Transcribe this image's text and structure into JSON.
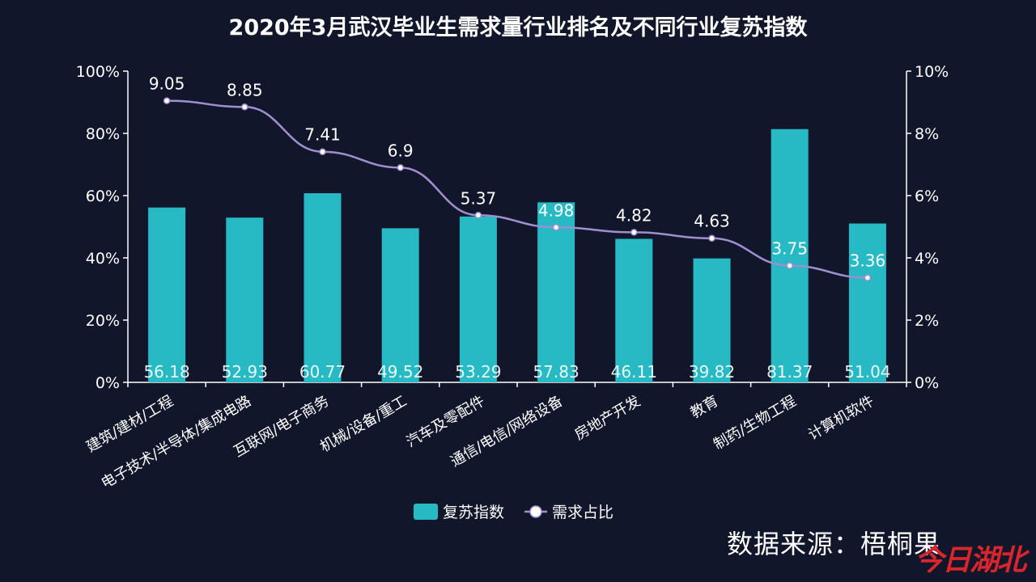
{
  "chart_data": {
    "type": "bar",
    "title": "2020年3月武汉毕业生需求量行业排名及不同行业复苏指数",
    "categories": [
      "建筑/建材/工程",
      "电子技术/半导体/集成电路",
      "互联网/电子商务",
      "机械/设备/重工",
      "汽车及零配件",
      "通信/电信/网络设备",
      "房地产开发",
      "教育",
      "制药/生物工程",
      "计算机软件"
    ],
    "series": [
      {
        "name": "复苏指数",
        "type": "bar",
        "axis": "left",
        "color": "#27b9c4",
        "values": [
          56.18,
          52.93,
          60.77,
          49.52,
          53.29,
          57.83,
          46.11,
          39.82,
          81.37,
          51.04
        ]
      },
      {
        "name": "需求占比",
        "type": "line",
        "axis": "right",
        "color": "#a08fd0",
        "values": [
          9.05,
          8.85,
          7.41,
          6.9,
          5.37,
          4.98,
          4.82,
          4.63,
          3.75,
          3.36
        ]
      }
    ],
    "left_axis": {
      "ylim": [
        0,
        100
      ],
      "ticks": [
        "0%",
        "20%",
        "40%",
        "60%",
        "80%",
        "100%"
      ]
    },
    "right_axis": {
      "ylim": [
        0,
        10
      ],
      "ticks": [
        "0%",
        "2%",
        "4%",
        "6%",
        "8%",
        "10%"
      ]
    },
    "legend_position": "bottom-center",
    "grid": false
  },
  "footer": {
    "source": "数据来源：梧桐果",
    "logo": "今日湖北"
  }
}
